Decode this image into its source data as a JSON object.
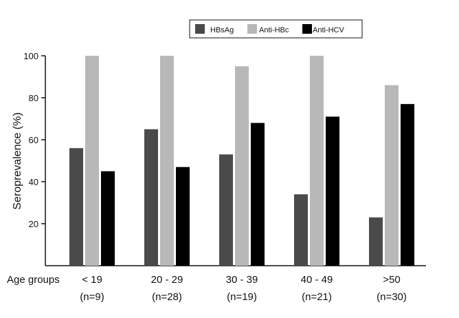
{
  "chart_data": {
    "type": "bar",
    "title": "",
    "ylabel": "Seroprevalence (%)",
    "xlabel": "Age groups",
    "ylim": [
      0,
      100
    ],
    "yticks": [
      20,
      40,
      60,
      80,
      100
    ],
    "grid": false,
    "legend_position": "top-right",
    "categories": [
      "< 19",
      "20 - 29",
      "30 - 39",
      "40 - 49",
      ">50"
    ],
    "category_counts": [
      "(n=9)",
      "(n=28)",
      "(n=19)",
      "(n=21)",
      "(n=30)"
    ],
    "series": [
      {
        "name": "HBsAg",
        "color": "#4a4a4a",
        "values": [
          56,
          65,
          53,
          34,
          23
        ]
      },
      {
        "name": "Anti-HBc",
        "color": "#b8b8b8",
        "values": [
          100,
          100,
          95,
          100,
          86
        ]
      },
      {
        "name": "Anti-HCV",
        "color": "#000000",
        "values": [
          45,
          47,
          68,
          71,
          77
        ]
      }
    ]
  }
}
